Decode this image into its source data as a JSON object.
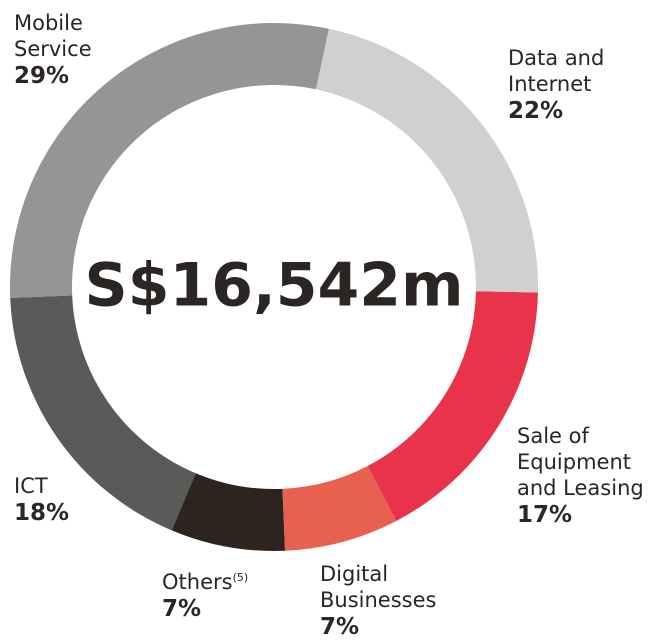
{
  "chart_data": {
    "type": "donut",
    "center_label": "S$16,542m",
    "categories": [
      "Data and Internet",
      "Sale of Equipment and Leasing",
      "Digital Businesses",
      "Others",
      "ICT",
      "Mobile Service"
    ],
    "category_notes": [
      null,
      null,
      null,
      "(5)",
      null,
      null
    ],
    "values": [
      22,
      17,
      7,
      7,
      18,
      29
    ],
    "value_labels": [
      "22%",
      "17%",
      "7%",
      "7%",
      "18%",
      "29%"
    ],
    "colors": [
      "#cfd0cf",
      "#e8334a",
      "#e8604f",
      "#2e241f",
      "#5a5a59",
      "#959593"
    ]
  }
}
